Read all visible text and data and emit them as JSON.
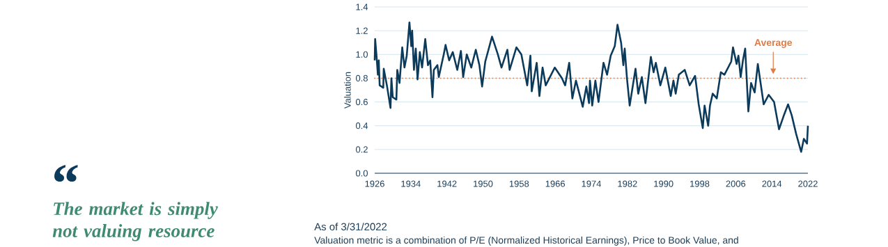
{
  "chart_data": {
    "type": "line",
    "ylabel": "Valuation",
    "x": [
      1926.0,
      1926.1,
      1926.4,
      1926.7,
      1926.9,
      1927.1,
      1927.9,
      1928.0,
      1928.7,
      1929.5,
      1929.7,
      1930.0,
      1930.8,
      1931.0,
      1931.5,
      1932.1,
      1932.6,
      1933.1,
      1933.7,
      1934.1,
      1934.3,
      1934.7,
      1935.1,
      1935.5,
      1936.0,
      1936.5,
      1937.2,
      1937.8,
      1938.3,
      1938.8,
      1939.1,
      1939.9,
      1940.2,
      1941.3,
      1941.7,
      1942.5,
      1943.3,
      1944.3,
      1945.1,
      1945.6,
      1946.4,
      1947.4,
      1948.4,
      1949.2,
      1949.8,
      1950.5,
      1952.0,
      1953.3,
      1954.1,
      1955.4,
      1955.9,
      1957.4,
      1958.5,
      1959.8,
      1960.5,
      1960.8,
      1961.9,
      1962.5,
      1963.2,
      1963.9,
      1965.9,
      1967.5,
      1968.2,
      1969.1,
      1969.8,
      1970.6,
      1972.1,
      1972.9,
      1973.5,
      1973.7,
      1974.2,
      1974.9,
      1975.6,
      1976.7,
      1977.5,
      1978.3,
      1979.2,
      1979.8,
      1980.6,
      1981.1,
      1981.4,
      1981.9,
      1982.5,
      1983.8,
      1984.4,
      1985.2,
      1986.0,
      1987.2,
      1987.8,
      1988.3,
      1989.3,
      1990.4,
      1991.6,
      1992.2,
      1992.7,
      1993.4,
      1994.7,
      1995.8,
      1997.0,
      1997.8,
      1998.7,
      1999.1,
      1999.9,
      2000.3,
      2000.9,
      2001.8,
      2002.7,
      2003.5,
      2005.0,
      2005.4,
      2006.2,
      2006.6,
      2007.1,
      2007.6,
      2008.1,
      2008.8,
      2009.4,
      2010.2,
      2010.9,
      2012.2,
      2013.3,
      2014.5,
      2015.6,
      2016.6,
      2017.6,
      2018.4,
      2019.4,
      2020.5,
      2021.1,
      2021.8,
      2022.0
    ],
    "series": [
      {
        "color": "#0b3a5a",
        "values": [
          0.95,
          1.13,
          0.99,
          0.83,
          0.95,
          0.74,
          0.72,
          0.88,
          0.74,
          0.55,
          0.8,
          0.64,
          0.62,
          0.87,
          0.76,
          1.06,
          0.89,
          0.99,
          1.27,
          1.07,
          1.2,
          0.87,
          1.05,
          0.79,
          1.02,
          0.89,
          1.13,
          0.91,
          0.95,
          0.64,
          0.87,
          0.91,
          0.81,
          1.0,
          1.08,
          0.95,
          1.02,
          0.87,
          1.03,
          0.81,
          1.0,
          0.89,
          1.04,
          0.91,
          0.73,
          0.94,
          1.15,
          1.0,
          0.89,
          1.04,
          0.87,
          1.06,
          1.0,
          0.74,
          0.99,
          0.69,
          0.93,
          0.65,
          0.89,
          0.74,
          0.89,
          0.8,
          0.74,
          0.93,
          0.63,
          0.78,
          0.56,
          0.73,
          0.59,
          0.78,
          0.57,
          0.78,
          0.6,
          0.93,
          0.83,
          0.99,
          1.07,
          1.25,
          1.1,
          0.91,
          1.05,
          0.8,
          0.57,
          0.88,
          0.67,
          0.81,
          0.59,
          0.98,
          0.85,
          0.93,
          0.74,
          0.89,
          0.65,
          0.78,
          0.67,
          0.83,
          0.87,
          0.74,
          0.82,
          0.58,
          0.38,
          0.57,
          0.4,
          0.57,
          0.67,
          0.63,
          0.85,
          0.83,
          0.94,
          1.06,
          0.92,
          0.99,
          0.81,
          0.95,
          1.05,
          0.52,
          0.76,
          0.68,
          0.92,
          0.58,
          0.66,
          0.6,
          0.37,
          0.48,
          0.58,
          0.49,
          0.33,
          0.18,
          0.29,
          0.25,
          0.4
        ]
      }
    ],
    "xlim": [
      1926,
      2022
    ],
    "xticks": [
      1926,
      1934,
      1942,
      1950,
      1958,
      1966,
      1974,
      1982,
      1990,
      1998,
      2006,
      2014,
      2022
    ],
    "ylim": [
      0,
      1.4
    ],
    "yticks": [
      {
        "value": 0,
        "label": "0.0"
      },
      {
        "value": 0.2,
        "label": "0.2"
      },
      {
        "value": 0.4,
        "label": "0.4"
      },
      {
        "value": 0.6,
        "label": "0.6"
      },
      {
        "value": 0.8,
        "label": "0.8"
      },
      {
        "value": 1.0,
        "label": "1.0"
      },
      {
        "value": 1.2,
        "label": "1.2"
      },
      {
        "value": 1.4,
        "label": "1.4"
      }
    ],
    "grid": "y",
    "marker": "none",
    "line_style": "solid",
    "ref_lines": [
      {
        "axis": "y",
        "value": 0.8,
        "label": "Average",
        "color": "#e07b45",
        "line_style": "dotted"
      }
    ],
    "annotations": [
      "“",
      "The market is simply not valuing resource",
      "As of 3/31/2022",
      "Valuation metric is a combination of P/E (Normalized Historical Earnings), Price to Book Value, and"
    ]
  }
}
